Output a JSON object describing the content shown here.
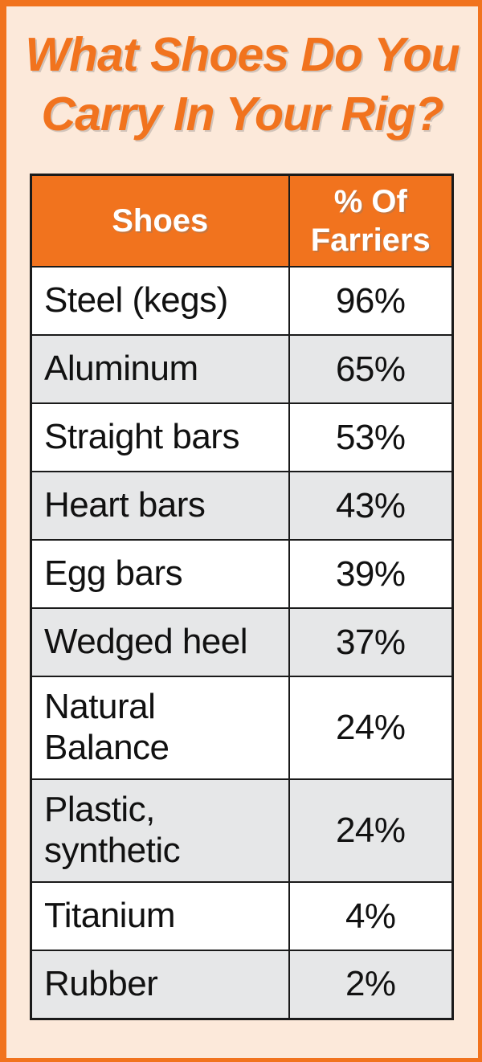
{
  "title": "What Shoes Do You\nCarry In Your Rig?",
  "colors": {
    "accent_orange": "#F1731E",
    "background_peach": "#FCE9DA",
    "row_gray": "#E6E7E8",
    "row_white": "#FFFFFF",
    "table_border": "#1A1A1A",
    "header_text": "#FFFFFF",
    "body_text": "#111111"
  },
  "table": {
    "headers": {
      "shoes": "Shoes",
      "farriers": "% Of\nFarriers"
    },
    "rows": [
      {
        "shoe": "Steel (kegs)",
        "pct": "96%"
      },
      {
        "shoe": "Aluminum",
        "pct": "65%"
      },
      {
        "shoe": "Straight bars",
        "pct": "53%"
      },
      {
        "shoe": "Heart bars",
        "pct": "43%"
      },
      {
        "shoe": "Egg bars",
        "pct": "39%"
      },
      {
        "shoe": "Wedged heel",
        "pct": "37%"
      },
      {
        "shoe": "Natural\nBalance",
        "pct": "24%"
      },
      {
        "shoe": "Plastic,\nsynthetic",
        "pct": "24%"
      },
      {
        "shoe": "Titanium",
        "pct": "4%"
      },
      {
        "shoe": "Rubber",
        "pct": "2%"
      }
    ]
  },
  "chart_data": {
    "type": "table",
    "title": "What Shoes Do You Carry In Your Rig?",
    "columns": [
      "Shoes",
      "% Of Farriers"
    ],
    "categories": [
      "Steel (kegs)",
      "Aluminum",
      "Straight bars",
      "Heart bars",
      "Egg bars",
      "Wedged heel",
      "Natural Balance",
      "Plastic, synthetic",
      "Titanium",
      "Rubber"
    ],
    "values": [
      96,
      65,
      53,
      43,
      39,
      37,
      24,
      24,
      4,
      2
    ],
    "unit": "%"
  }
}
